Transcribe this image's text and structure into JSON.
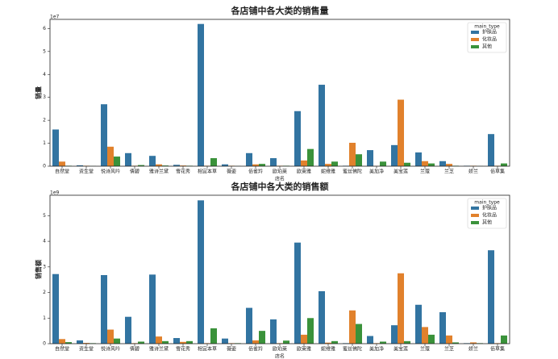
{
  "chart_data": [
    {
      "type": "bar",
      "title": "各店铺中各大类的销售量",
      "ylabel": "销量",
      "xlabel": "店名",
      "y_offset_label": "1e7",
      "categories": [
        "自然堂",
        "资生堂",
        "悦诗风吟",
        "倩碧",
        "雅诗兰黛",
        "雪花秀",
        "相宜本草",
        "薇姿",
        "佰雀羚",
        "欧珀莱",
        "欧莱雅",
        "妮维雅",
        "蜜丝佛陀",
        "美加净",
        "美宝莲",
        "兰蔻",
        "兰芝",
        "娇兰",
        "佰草集"
      ],
      "legend_title": "main_type",
      "legend": "upper right",
      "series": [
        {
          "name": "护肤品",
          "color": "#3274a1",
          "values": [
            1.6,
            0.04,
            2.7,
            0.57,
            0.45,
            0.06,
            6.2,
            0.08,
            0.57,
            0.35,
            2.4,
            3.55,
            0.02,
            0.7,
            0.92,
            0.6,
            0.22,
            0.02,
            1.4
          ]
        },
        {
          "name": "化妆品",
          "color": "#e1812c",
          "values": [
            0.2,
            0.02,
            0.85,
            0.02,
            0.08,
            0.03,
            0.02,
            0.02,
            0.08,
            0.02,
            0.25,
            0.1,
            1.02,
            0.01,
            2.9,
            0.22,
            0.1,
            0.02,
            0.02
          ]
        },
        {
          "name": "其他",
          "color": "#3a923a",
          "values": [
            0.02,
            0.01,
            0.42,
            0.05,
            0.03,
            0.02,
            0.35,
            0.01,
            0.1,
            0.02,
            0.75,
            0.2,
            0.52,
            0.2,
            0.15,
            0.12,
            0.02,
            0.01,
            0.12
          ]
        }
      ],
      "ylim": [
        0,
        6.4
      ],
      "yticks": [
        0,
        1,
        2,
        3,
        4,
        5,
        6
      ]
    },
    {
      "type": "bar",
      "title": "各店铺中各大类的销售额",
      "ylabel": "销售额",
      "xlabel": "店名",
      "y_offset_label": "1e9",
      "categories": [
        "自然堂",
        "资生堂",
        "悦诗风吟",
        "倩碧",
        "雅诗兰黛",
        "雪花秀",
        "相宜本草",
        "薇姿",
        "佰雀羚",
        "欧珀莱",
        "欧莱雅",
        "妮维雅",
        "蜜丝佛陀",
        "美加净",
        "美宝莲",
        "兰蔻",
        "兰芝",
        "娇兰",
        "佰草集"
      ],
      "legend_title": "main_type",
      "legend": "upper right",
      "series": [
        {
          "name": "护肤品",
          "color": "#3274a1",
          "values": [
            2.72,
            0.13,
            2.68,
            1.05,
            2.7,
            0.22,
            5.6,
            0.2,
            1.4,
            0.95,
            3.95,
            2.05,
            0.02,
            0.3,
            0.72,
            1.52,
            1.23,
            0.02,
            3.65
          ]
        },
        {
          "name": "化妆品",
          "color": "#e1812c",
          "values": [
            0.18,
            0.03,
            0.55,
            0.02,
            0.28,
            0.07,
            0.02,
            0.02,
            0.13,
            0.02,
            0.35,
            0.04,
            1.3,
            0.02,
            2.75,
            0.65,
            0.32,
            0.05,
            0.02
          ]
        },
        {
          "name": "其他",
          "color": "#3a923a",
          "values": [
            0.06,
            0.02,
            0.2,
            0.08,
            0.1,
            0.1,
            0.6,
            0.02,
            0.5,
            0.12,
            1.0,
            0.1,
            0.77,
            0.08,
            0.1,
            0.35,
            0.05,
            0.02,
            0.32
          ]
        }
      ],
      "ylim": [
        0,
        5.8
      ],
      "yticks": [
        0,
        1,
        2,
        3,
        4,
        5
      ]
    }
  ]
}
